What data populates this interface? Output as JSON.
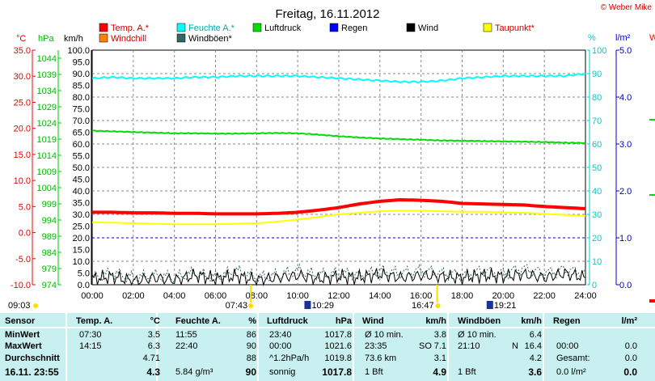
{
  "title": "Freitag, 16.11.2012",
  "copyright": "© Weber Mike",
  "colors": {
    "temp": "#ff0000",
    "humidity": "#00ffff",
    "pressure": "#00dd00",
    "rain": "#0000ff",
    "wind": "#000000",
    "dewpoint": "#ffff00",
    "windchill": "#ff8000",
    "gust": "#336666"
  },
  "legend": [
    {
      "label": "Temp. A.*",
      "color": "#ff0000"
    },
    {
      "label": "Feuchte A.*",
      "color": "#00ffff"
    },
    {
      "label": "Luftdruck",
      "color": "#00dd00"
    },
    {
      "label": "Regen",
      "color": "#0000ff"
    },
    {
      "label": "Wind",
      "color": "#000000"
    },
    {
      "label": "Taupunkt*",
      "color": "#ffff00"
    },
    {
      "label": "Windchill",
      "color": "#ff8000"
    },
    {
      "label": "Windböen*",
      "color": "#336666"
    }
  ],
  "axes": {
    "temp_unit": "°C",
    "pressure_unit": "hPa",
    "wind_unit": "km/h",
    "humidity_unit": "%",
    "rain_unit": "l/m²",
    "temp_ticks": [
      "35.0",
      "30.0",
      "25.0",
      "20.0",
      "15.0",
      "10.0",
      "5.0",
      "0.0",
      "-5.0",
      "-10.0"
    ],
    "pressure_ticks": [
      "1044",
      "1039",
      "1034",
      "1029",
      "1024",
      "1019",
      "1014",
      "1009",
      "1004",
      "999",
      "994",
      "989",
      "984",
      "979",
      "974"
    ],
    "wind_ticks": [
      "100.0",
      "95.0",
      "90.0",
      "85.0",
      "80.0",
      "75.0",
      "70.0",
      "65.0",
      "60.0",
      "55.0",
      "50.0",
      "45.0",
      "40.0",
      "35.0",
      "30.0",
      "25.0",
      "20.0",
      "15.0",
      "10.0",
      "5.0",
      "0.0"
    ],
    "humidity_ticks": [
      "100",
      "90",
      "80",
      "70",
      "60",
      "50",
      "40",
      "30",
      "20",
      "10",
      "0"
    ],
    "rain_ticks": [
      "5.0",
      "4.0",
      "3.0",
      "2.0",
      "1.0",
      "0.0"
    ],
    "time_ticks": [
      "00:00",
      "02:00",
      "04:00",
      "06:00",
      "08:00",
      "10:00",
      "12:00",
      "14:00",
      "16:00",
      "18:00",
      "20:00",
      "22:00",
      "24:00"
    ]
  },
  "sun_markers": {
    "left": "09:03",
    "sunrise": "07:43",
    "moonrise": "10:29",
    "sunset": "16:47",
    "moonset": "19:21"
  },
  "chart_data": {
    "type": "line",
    "title": "Freitag, 16.11.2012",
    "x_range": [
      "00:00",
      "24:00"
    ],
    "hours": [
      0,
      1,
      2,
      3,
      4,
      5,
      6,
      7,
      8,
      9,
      10,
      11,
      12,
      13,
      14,
      15,
      16,
      17,
      18,
      19,
      20,
      21,
      22,
      23,
      24
    ],
    "series": [
      {
        "name": "Temp. A.*",
        "unit": "°C",
        "values": [
          3.9,
          3.9,
          3.8,
          3.8,
          3.7,
          3.7,
          3.6,
          3.6,
          3.6,
          3.7,
          3.9,
          4.3,
          4.8,
          5.5,
          6.0,
          6.3,
          6.2,
          6.0,
          5.6,
          5.5,
          5.4,
          5.3,
          5.0,
          4.8,
          4.6
        ]
      },
      {
        "name": "Feuchte A.*",
        "unit": "%",
        "values": [
          88,
          88.5,
          88,
          88,
          88,
          88.5,
          88.5,
          89,
          89,
          89,
          89,
          88.5,
          88,
          87.5,
          87,
          86.5,
          86.5,
          87,
          88,
          88.5,
          89,
          89,
          89,
          89,
          90
        ]
      },
      {
        "name": "Luftdruck",
        "unit": "hPa",
        "values": [
          1021.6,
          1021.4,
          1021.2,
          1021.0,
          1020.8,
          1020.8,
          1020.7,
          1020.7,
          1020.8,
          1020.9,
          1020.8,
          1020.4,
          1019.9,
          1019.5,
          1019.2,
          1019.0,
          1018.8,
          1018.6,
          1018.5,
          1018.4,
          1018.3,
          1018.2,
          1018.1,
          1017.9,
          1017.8
        ]
      },
      {
        "name": "Taupunkt*",
        "unit": "°C",
        "values": [
          2.0,
          1.9,
          1.8,
          1.7,
          1.6,
          1.6,
          1.6,
          1.7,
          1.8,
          2.1,
          2.5,
          3.0,
          3.5,
          3.8,
          4.1,
          4.2,
          4.2,
          4.1,
          4.0,
          4.0,
          3.9,
          3.8,
          3.6,
          3.4,
          3.2
        ]
      },
      {
        "name": "Regen",
        "unit": "l/m²",
        "values": [
          0.0,
          0.0,
          0.0,
          0.0,
          0.0,
          0.0,
          0.0,
          0.0,
          0.0,
          0.0,
          0.0,
          0.0,
          0.0,
          0.0,
          0.0,
          0.0,
          0.0,
          0.0,
          0.0,
          0.0,
          0.0,
          0.0,
          0.0,
          0.0,
          0.0
        ]
      },
      {
        "name": "Wind",
        "unit": "km/h",
        "values": [
          2.5,
          3.5,
          1.5,
          3,
          2,
          4,
          2.5,
          3.8,
          2,
          3,
          4,
          2.5,
          3.5,
          3,
          4.5,
          3,
          4,
          3.5,
          3,
          4,
          3.5,
          4.5,
          3,
          4.9,
          3
        ]
      },
      {
        "name": "Windböen*",
        "unit": "km/h",
        "values": [
          3,
          5,
          3,
          4,
          3,
          5,
          3,
          6,
          3,
          4,
          6,
          4,
          5,
          4,
          6,
          5,
          6,
          5,
          4,
          6,
          5,
          7,
          5,
          6.4,
          5
        ]
      }
    ],
    "rain_reference_level_lm2": 1.0
  },
  "stats": {
    "headers": [
      "Sensor",
      "Temp. A.",
      "°C",
      "Feuchte A.",
      "%",
      "Luftdruck",
      "hPa",
      "Wind",
      "km/h",
      "Windböen",
      "km/h",
      "Regen",
      "l/m²"
    ],
    "rows": [
      {
        "label": "MinWert",
        "temp_time": "07:30",
        "temp_val": "3.5",
        "hum_time": "11:55",
        "hum_val": "86",
        "press_time": "23:40",
        "press_val": "1017.8",
        "wind_a": "Ø 10 min.",
        "wind_val": "3.8",
        "gust_a": "Ø 10 min.",
        "gust_val": "6.4",
        "rain_a": "",
        "rain_val": ""
      },
      {
        "label": "MaxWert",
        "temp_time": "14:15",
        "temp_val": "6.3",
        "hum_time": "22:40",
        "hum_val": "90",
        "press_time": "00:00",
        "press_val": "1021.6",
        "wind_a": "23:35",
        "wind_dir": "SO",
        "wind_val": "7.1",
        "gust_a": "21:10",
        "gust_dir": "N",
        "gust_val": "16.4",
        "rain_a": "00:00",
        "rain_val": "0.0"
      },
      {
        "label": "Durchschnitt",
        "temp_time": "",
        "temp_val": "4.71",
        "hum_time": "",
        "hum_val": "88",
        "press_time": "^1.2hPa/h",
        "press_val": "1019.8",
        "wind_a": "73.6 km",
        "wind_val": "3.1",
        "gust_a": "",
        "gust_val": "4.2",
        "rain_a": "Gesamt:",
        "rain_val": "0.0"
      },
      {
        "label": "16.11. 23:55",
        "temp_time": "",
        "temp_val": "4.3",
        "hum_time": "5.84 g/m³",
        "hum_val": "90",
        "press_time": "sonnig",
        "press_val": "1017.8",
        "wind_a": "1 Bft",
        "wind_val": "4.9",
        "gust_a": "1 Bft",
        "gust_val": "3.6",
        "rain_a": "0.0 l/m²",
        "rain_val": "0.0"
      }
    ]
  },
  "right_edge_labels": [
    "W"
  ]
}
